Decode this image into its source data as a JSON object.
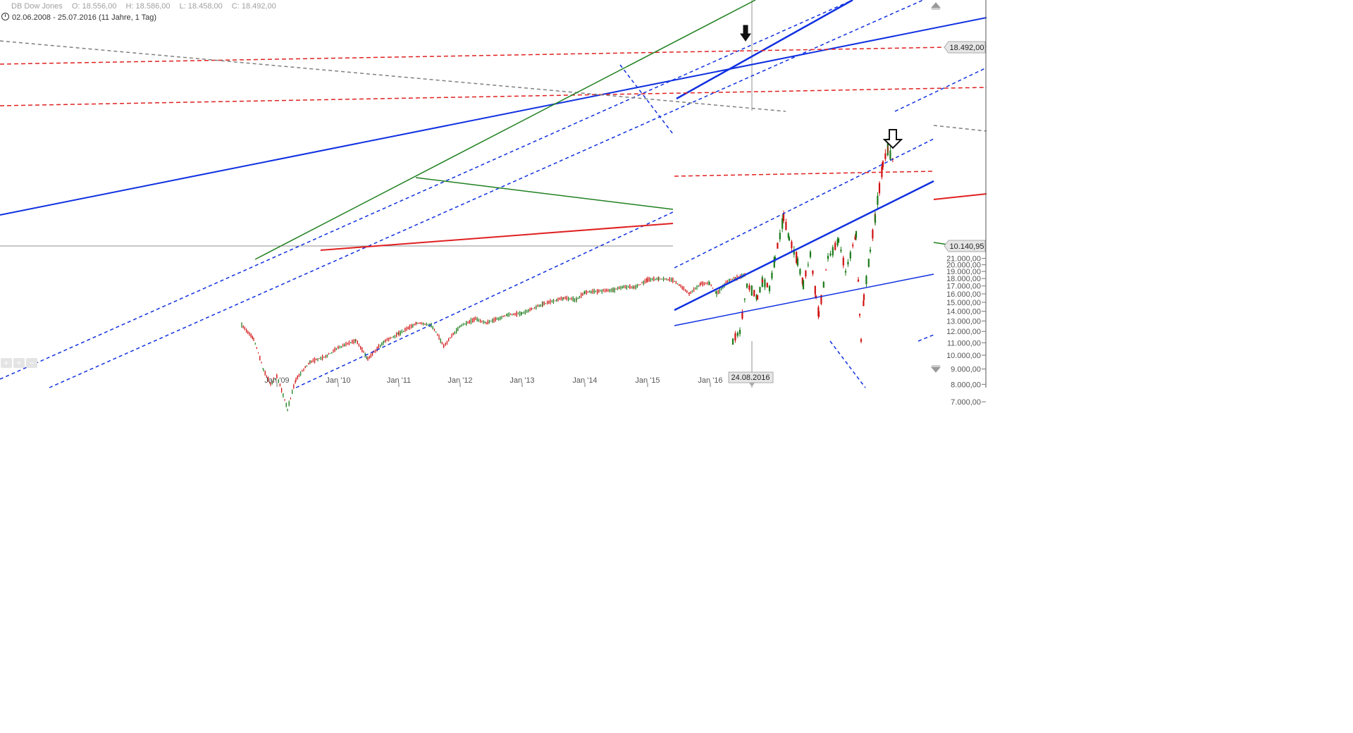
{
  "header": {
    "instrument": "DB Dow Jones",
    "open": "O: 18.556,00",
    "high": "H: 18.586,00",
    "low": "L: 18.458,00",
    "close": "C: 18.492,00",
    "range": "02.06.2008 - 25.07.2016 (11 Jahre, 1 Tag)"
  },
  "price_tags": {
    "last": "18.492,00",
    "secondary": "10.140,95",
    "date": "24.08.2016"
  },
  "zoom_controls": [
    "+",
    "+",
    "−"
  ],
  "colors": {
    "candle_up": "#1a7a1a",
    "candle_down": "#d01010",
    "trend_blue": "#1030e0",
    "trend_red": "#e02020",
    "trend_green": "#208020",
    "trend_gray": "#808080"
  },
  "chart_data": [
    {
      "type": "candlestick",
      "title": "DB Dow Jones",
      "x": [
        "Jan '09",
        "Jan '10",
        "Jan '11",
        "Jan '12",
        "Jan '13",
        "Jan '14",
        "Jan '15",
        "Jan '16"
      ],
      "y_axis_labels": [
        "21.000,00",
        "20.000,00",
        "19.000,00",
        "18.000,00",
        "17.000,00",
        "16.000,00",
        "15.000,00",
        "14.000,00",
        "13.000,00",
        "12.000,00",
        "11.000,00",
        "10.000,00",
        "9.000,00",
        "8.000,00",
        "7.000,00"
      ],
      "ylim": [
        6500,
        21000
      ],
      "series": [
        {
          "values": [
            [
              "Jun '08",
              12600
            ],
            [
              "Sep '08",
              11300
            ],
            [
              "Oct '08",
              8900
            ],
            [
              "Nov '08",
              8000
            ],
            [
              "Jan '09",
              8500
            ],
            [
              "Mar '09",
              6600
            ],
            [
              "May '09",
              8300
            ],
            [
              "Aug '09",
              9500
            ],
            [
              "Oct '09",
              9900
            ],
            [
              "Jan '10",
              10600
            ],
            [
              "Apr '10",
              11200
            ],
            [
              "Jul '10",
              9700
            ],
            [
              "Oct '10",
              11100
            ],
            [
              "Jan '11",
              11800
            ],
            [
              "Apr '11",
              12800
            ],
            [
              "Jul '11",
              12600
            ],
            [
              "Oct '11",
              10700
            ],
            [
              "Jan '12",
              12500
            ],
            [
              "Apr '12",
              13200
            ],
            [
              "Jul '12",
              12800
            ],
            [
              "Oct '12",
              13600
            ],
            [
              "Jan '13",
              13800
            ],
            [
              "Apr '13",
              14800
            ],
            [
              "Jul '13",
              15500
            ],
            [
              "Oct '13",
              15300
            ],
            [
              "Jan '14",
              16200
            ],
            [
              "Apr '14",
              16500
            ],
            [
              "Jul '14",
              16900
            ],
            [
              "Oct '14",
              16800
            ],
            [
              "Jan '15",
              17800
            ],
            [
              "Apr '15",
              18000
            ],
            [
              "Jul '15",
              17800
            ],
            [
              "Aug '15",
              16000
            ],
            [
              "Oct '15",
              17300
            ],
            [
              "Dec '15",
              17400
            ],
            [
              "Feb '16",
              16000
            ],
            [
              "Apr '16",
              17800
            ],
            [
              "Jul '16",
              18492
            ]
          ]
        }
      ]
    },
    {
      "type": "candlestick",
      "y_axis_labels": [],
      "annotations": [
        "24.08.2016",
        "10.140,95"
      ],
      "series": [
        {
          "values": [
            [
              7700
            ],
            [
              8000
            ],
            [
              9400
            ],
            [
              9000
            ],
            [
              9500
            ],
            [
              9300
            ],
            [
              10200
            ],
            [
              11400
            ],
            [
              10800
            ],
            [
              10100
            ],
            [
              9400
            ],
            [
              10300
            ],
            [
              9000
            ],
            [
              8500
            ],
            [
              10200
            ],
            [
              10700
            ],
            [
              9800
            ],
            [
              10900
            ],
            [
              9500
            ],
            [
              8500
            ],
            [
              7700
            ],
            [
              9000
            ],
            [
              10400
            ],
            [
              11400
            ],
            [
              12300
            ],
            [
              13000
            ],
            [
              13500
            ],
            [
              13100
            ]
          ]
        }
      ]
    }
  ]
}
